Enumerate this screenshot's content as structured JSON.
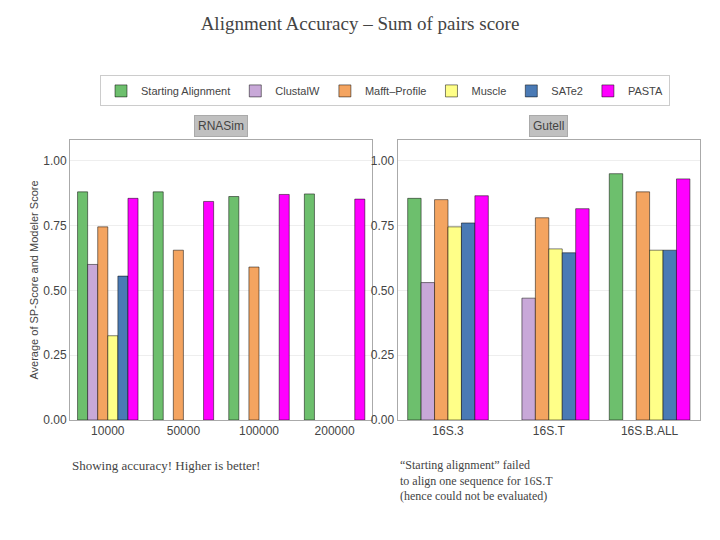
{
  "title": "Alignment Accuracy – Sum of pairs score",
  "annotations": [
    "Showing accuracy! Higher is better!",
    "“Starting alignment” failed\nto align one sequence for 16S.T\n(hence could not be evaluated)"
  ],
  "chart_data": [
    {
      "type": "bar",
      "title": "RNASim",
      "ylabel": "Average of SP-Score and Modeler Score",
      "categories": [
        "10000",
        "50000",
        "100000",
        "200000"
      ],
      "series": [
        {
          "name": "Starting Alignment",
          "color": "#6dbf6d",
          "values": [
            0.88,
            0.88,
            0.862,
            0.872
          ]
        },
        {
          "name": "ClustalW",
          "color": "#c8a8d8",
          "values": [
            0.6,
            null,
            null,
            null
          ]
        },
        {
          "name": "Mafft–Profile",
          "color": "#f4a460",
          "values": [
            0.745,
            0.655,
            0.59,
            null
          ]
        },
        {
          "name": "Muscle",
          "color": "#ffff88",
          "values": [
            0.325,
            null,
            null,
            null
          ]
        },
        {
          "name": "SATe2",
          "color": "#4a7ab5",
          "values": [
            0.555,
            null,
            null,
            null
          ]
        },
        {
          "name": "PASTA",
          "color": "#ff00ff",
          "values": [
            0.855,
            0.843,
            0.87,
            0.852
          ]
        }
      ],
      "ylim": [
        0,
        1.08
      ],
      "yticks": [
        {
          "value": 0,
          "label": "0.00"
        },
        {
          "value": 0.25,
          "label": "0.25"
        },
        {
          "value": 0.5,
          "label": "0.50"
        },
        {
          "value": 0.75,
          "label": "0.75"
        },
        {
          "value": 1,
          "label": "1.00"
        }
      ],
      "grid": true,
      "legend": "top"
    },
    {
      "type": "bar",
      "title": "Gutell",
      "categories": [
        "16S.3",
        "16S.T",
        "16S.B.ALL"
      ],
      "series": [
        {
          "name": "Starting Alignment",
          "color": "#6dbf6d",
          "values": [
            0.855,
            null,
            0.95
          ]
        },
        {
          "name": "ClustalW",
          "color": "#c8a8d8",
          "values": [
            0.53,
            0.47,
            null
          ]
        },
        {
          "name": "Mafft–Profile",
          "color": "#f4a460",
          "values": [
            0.85,
            0.78,
            0.88
          ]
        },
        {
          "name": "Muscle",
          "color": "#ffff88",
          "values": [
            0.745,
            0.66,
            0.655
          ]
        },
        {
          "name": "SATe2",
          "color": "#4a7ab5",
          "values": [
            0.76,
            0.645,
            0.655
          ]
        },
        {
          "name": "PASTA",
          "color": "#ff00ff",
          "values": [
            0.865,
            0.815,
            0.93
          ]
        }
      ],
      "ylim": [
        0,
        1.08
      ],
      "yticks": [
        {
          "value": 0,
          "label": "0.00"
        },
        {
          "value": 0.25,
          "label": "0.25"
        },
        {
          "value": 0.5,
          "label": "0.50"
        },
        {
          "value": 0.75,
          "label": "0.75"
        },
        {
          "value": 1,
          "label": "1.00"
        }
      ],
      "grid": true,
      "legend": "top"
    }
  ]
}
